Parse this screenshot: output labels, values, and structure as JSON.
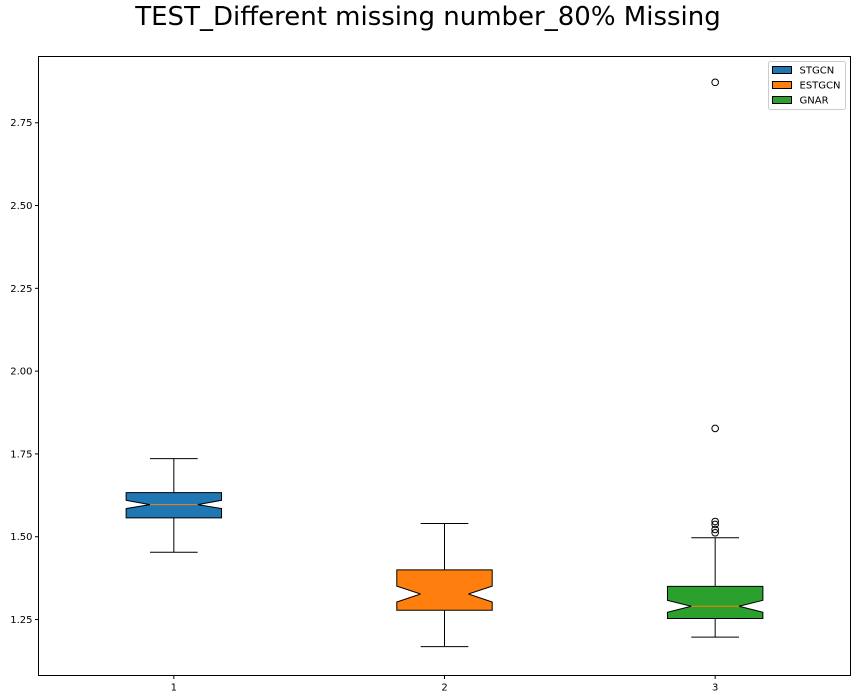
{
  "chart_data": {
    "type": "box",
    "title": "TEST_Different missing number_80% Missing",
    "xlabel": "",
    "ylabel": "",
    "xlim": [
      0.5,
      3.5
    ],
    "ylim": [
      1.081,
      2.95
    ],
    "categories": [
      "1",
      "2",
      "3"
    ],
    "y_ticks": [
      1.25,
      1.5,
      1.75,
      2.0,
      2.25,
      2.5,
      2.75
    ],
    "y_tick_labels": [
      "1.25",
      "1.50",
      "1.75",
      "2.00",
      "2.25",
      "2.50",
      "2.75"
    ],
    "grid": false,
    "notched": true,
    "legend": {
      "placement": "top-right",
      "entries": [
        "STGCN",
        "ESTGCN",
        "GNAR"
      ]
    },
    "series": [
      {
        "name": "STGCN",
        "position": 1,
        "color": "#1f77b4",
        "whisker_low": 1.453,
        "q1": 1.557,
        "median": 1.597,
        "q3": 1.633,
        "whisker_high": 1.736,
        "notch_low": 1.585,
        "notch_high": 1.61,
        "outliers": []
      },
      {
        "name": "ESTGCN",
        "position": 2,
        "color": "#ff7f0e",
        "whisker_low": 1.168,
        "q1": 1.278,
        "median": 1.327,
        "q3": 1.4,
        "whisker_high": 1.54,
        "notch_low": 1.303,
        "notch_high": 1.351,
        "outliers": []
      },
      {
        "name": "GNAR",
        "position": 3,
        "color": "#2ca02c",
        "whisker_low": 1.197,
        "q1": 1.253,
        "median": 1.29,
        "q3": 1.35,
        "whisker_high": 1.497,
        "notch_low": 1.272,
        "notch_high": 1.308,
        "outliers": [
          1.512,
          1.522,
          1.537,
          1.546,
          1.827,
          2.872
        ]
      }
    ],
    "median_line_color": "#ff7f0e"
  }
}
